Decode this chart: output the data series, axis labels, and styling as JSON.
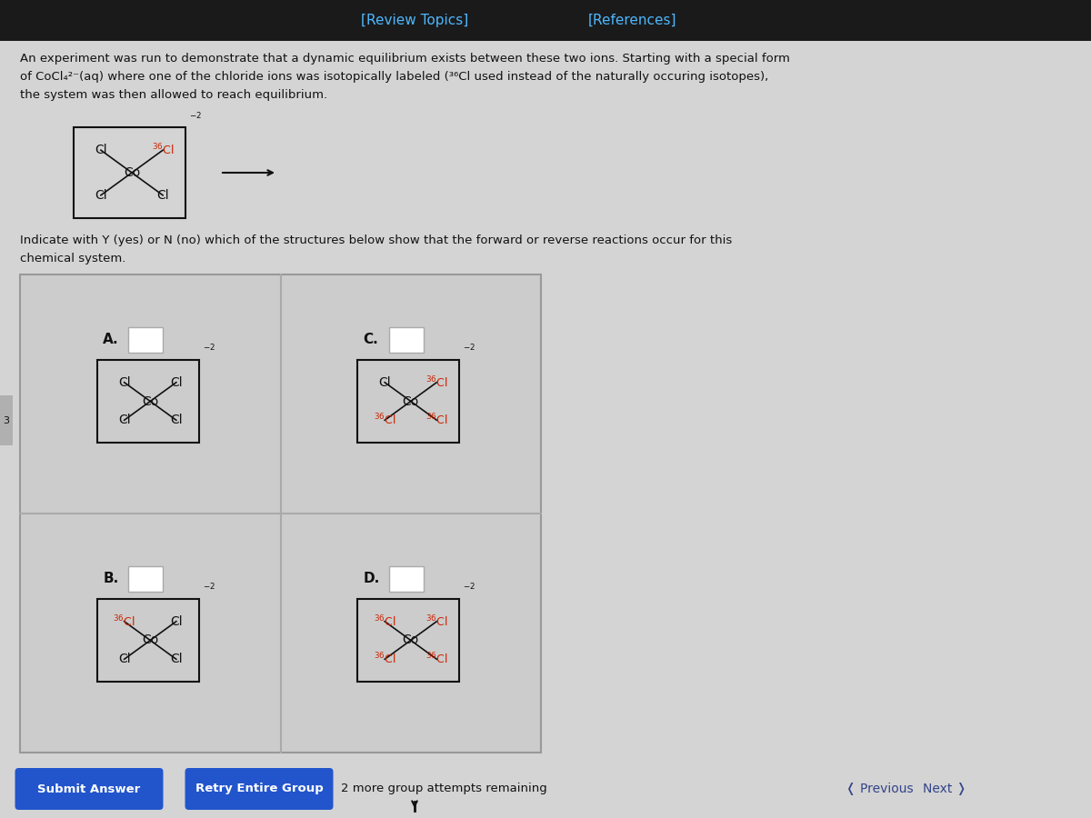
{
  "bg_color": "#e8e8e8",
  "header_bg": "#1a1a1a",
  "header_text_color": "#4db8ff",
  "header_link1": "[Review Topics]",
  "header_link2": "[References]",
  "body_bg": "#d4d4d4",
  "text_color": "#111111",
  "red_color": "#cc2200",
  "main_text_line1": "An experiment was run to demonstrate that a dynamic equilibrium exists between these two ions. Starting with a special form",
  "main_text_line2": "of CoCl₄²⁻(aq) where one of the chloride ions was isotopically labeled (³⁶Cl used instead of the naturally occuring isotopes),",
  "main_text_line3": "the system was then allowed to reach equilibrium.",
  "indicate_text_line1": "Indicate with Y (yes) or N (no) which of the structures below show that the forward or reverse reactions occur for this",
  "indicate_text_line2": "chemical system.",
  "btn1": "Submit Answer",
  "btn2": "Retry Entire Group",
  "btn_color": "#2255cc",
  "btn_text_color": "white",
  "nav_prev": "Previous",
  "nav_next": "Next",
  "attempts_text": "2 more group attempts remaining"
}
